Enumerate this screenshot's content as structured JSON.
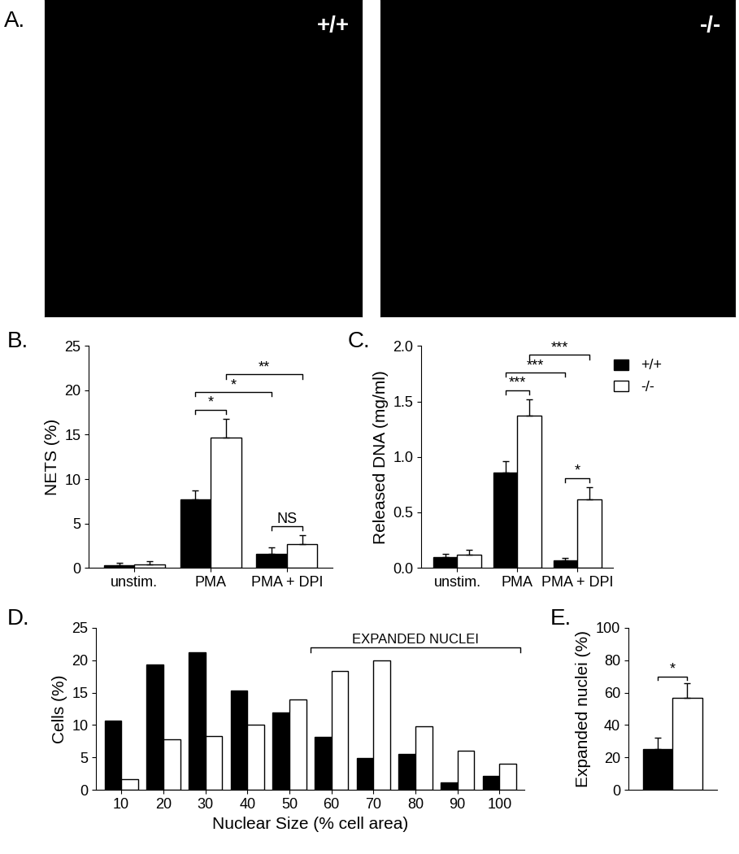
{
  "chart_data": [
    {
      "type": "image",
      "title": "A.",
      "panels": [
        "+/+",
        "-/-"
      ]
    },
    {
      "type": "bar",
      "title": "B.",
      "y_label": "NETS (%)",
      "categories": [
        "unstim.",
        "PMA",
        "PMA + DPI"
      ],
      "series": [
        {
          "name": "+/+",
          "color": "#000000",
          "values": [
            0.3,
            7.7,
            1.6
          ],
          "errors": [
            0.3,
            1.0,
            0.7
          ]
        },
        {
          "name": "-/-",
          "color": "#ffffff",
          "values": [
            0.4,
            14.7,
            2.7
          ],
          "errors": [
            0.4,
            2.1,
            1.0
          ]
        }
      ],
      "ylim": [
        0,
        25
      ],
      "yticks": [
        0,
        5,
        10,
        15,
        20,
        25
      ],
      "grid": false,
      "significance": [
        {
          "between": [
            [
              1,
              0
            ],
            [
              1,
              1
            ]
          ],
          "label": "*"
        },
        {
          "between": [
            [
              1,
              0
            ],
            [
              2,
              0
            ]
          ],
          "label": "*"
        },
        {
          "between": [
            [
              1,
              1
            ],
            [
              2,
              1
            ]
          ],
          "label": "**"
        },
        {
          "between": [
            [
              2,
              0
            ],
            [
              2,
              1
            ]
          ],
          "label": "NS"
        }
      ]
    },
    {
      "type": "bar",
      "title": "C.",
      "y_label": "Released DNA (mg/ml)",
      "categories": [
        "unstim.",
        "PMA",
        "PMA + DPI"
      ],
      "series": [
        {
          "name": "+/+",
          "color": "#000000",
          "values": [
            0.1,
            0.86,
            0.07
          ],
          "errors": [
            0.03,
            0.1,
            0.02
          ]
        },
        {
          "name": "-/-",
          "color": "#ffffff",
          "values": [
            0.12,
            1.37,
            0.62
          ],
          "errors": [
            0.04,
            0.15,
            0.11
          ]
        }
      ],
      "ylim": [
        0,
        2.0
      ],
      "yticks": [
        0.0,
        0.5,
        1.0,
        1.5,
        2.0
      ],
      "grid": false,
      "legend": "upper right",
      "significance": [
        {
          "between": [
            [
              1,
              0
            ],
            [
              1,
              1
            ]
          ],
          "label": "***"
        },
        {
          "between": [
            [
              1,
              0
            ],
            [
              2,
              0
            ]
          ],
          "label": "***"
        },
        {
          "between": [
            [
              1,
              1
            ],
            [
              2,
              1
            ]
          ],
          "label": "***"
        },
        {
          "between": [
            [
              2,
              0
            ],
            [
              2,
              1
            ]
          ],
          "label": "*"
        }
      ]
    },
    {
      "type": "bar",
      "title": "D.",
      "x_label": "Nuclear Size (% cell area)",
      "y_label": "Cells (%)",
      "categories": [
        "10",
        "20",
        "30",
        "40",
        "50",
        "60",
        "70",
        "80",
        "90",
        "100"
      ],
      "series": [
        {
          "name": "+/+",
          "color": "#000000",
          "values": [
            10.7,
            19.3,
            21.2,
            15.3,
            11.9,
            8.2,
            4.9,
            5.5,
            1.2,
            2.1
          ]
        },
        {
          "name": "-/-",
          "color": "#ffffff",
          "values": [
            1.6,
            7.8,
            8.3,
            10.0,
            14.0,
            18.3,
            19.9,
            9.8,
            6.1,
            4.1
          ]
        }
      ],
      "ylim": [
        0,
        25
      ],
      "yticks": [
        0,
        5,
        10,
        15,
        20,
        25
      ],
      "grid": false,
      "annotations": [
        {
          "text": "EXPANDED NUCLEI",
          "from": "60",
          "to": "100"
        }
      ]
    },
    {
      "type": "bar",
      "title": "E.",
      "y_label": "Expanded nuclei (%)",
      "categories": [
        null
      ],
      "series": [
        {
          "name": "+/+",
          "color": "#000000",
          "values": [
            25
          ],
          "errors": [
            7
          ]
        },
        {
          "name": "-/-",
          "color": "#ffffff",
          "values": [
            57
          ],
          "errors": [
            9
          ]
        }
      ],
      "ylim": [
        0,
        100
      ],
      "yticks": [
        0,
        20,
        40,
        60,
        80,
        100
      ],
      "grid": false,
      "tick_labels": "y",
      "significance": [
        {
          "between": [
            [
              0,
              0
            ],
            [
              0,
              1
            ]
          ],
          "label": "*"
        }
      ]
    }
  ]
}
